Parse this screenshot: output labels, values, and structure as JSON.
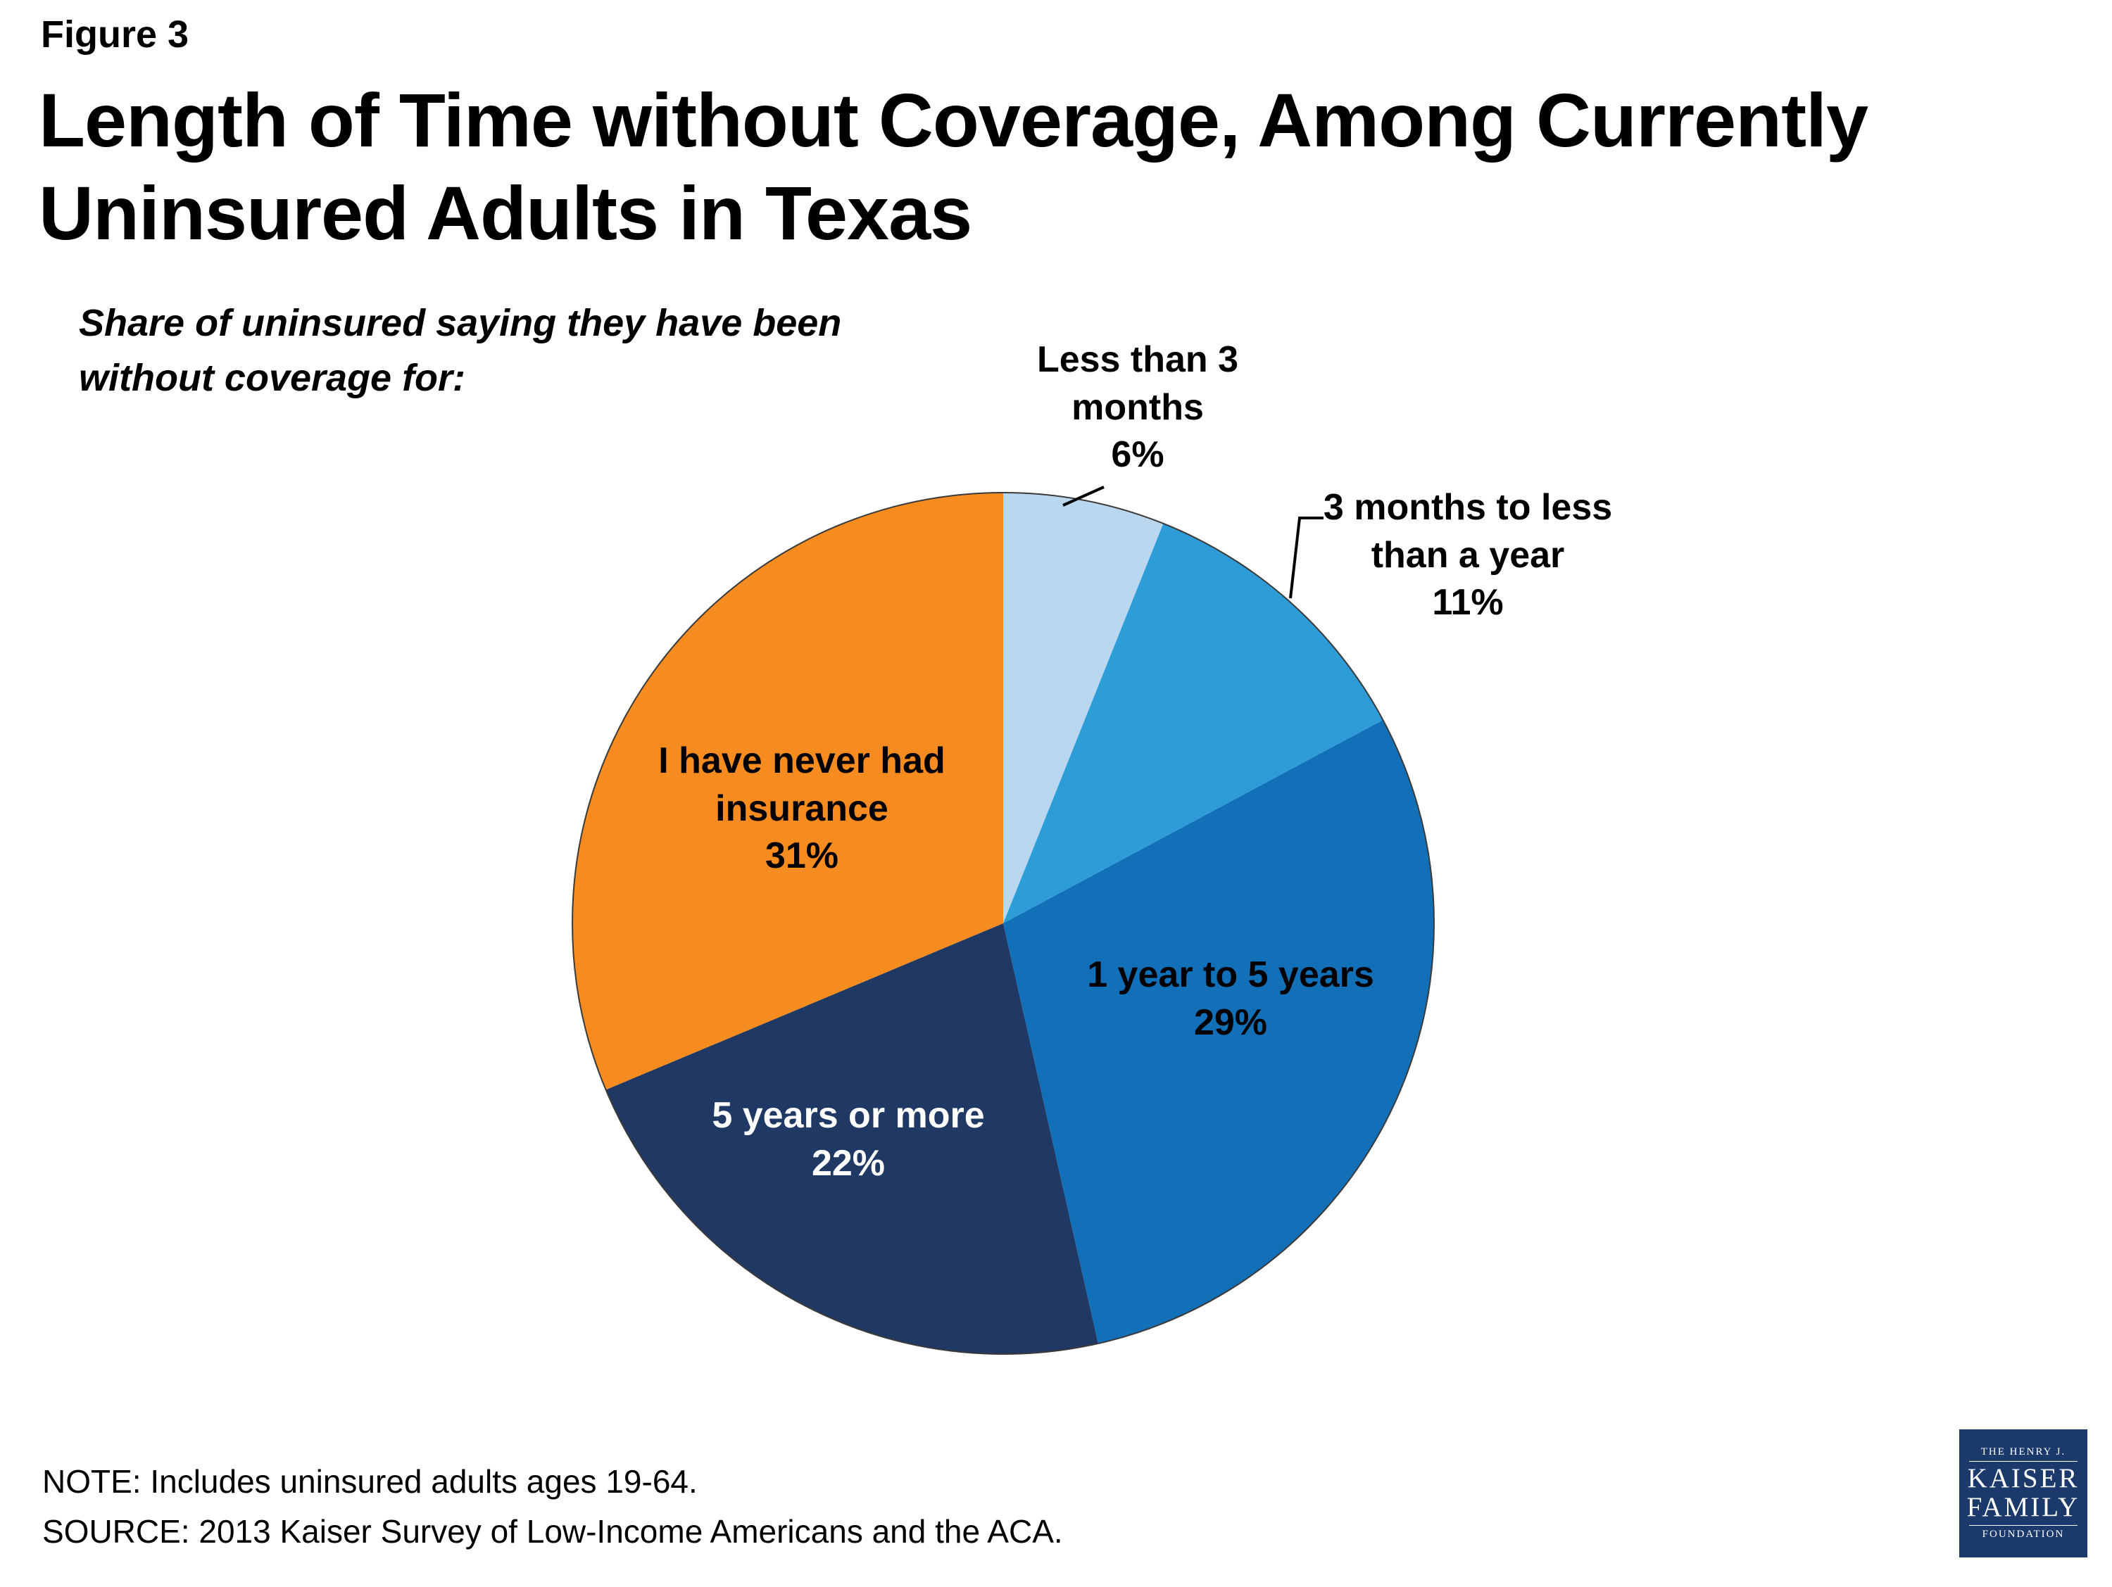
{
  "figure_label": "Figure 3",
  "title_line1": "Length of Time without Coverage, Among Currently",
  "title_line2": "Uninsured Adults in Texas",
  "subtitle_line1": "Share of uninsured saying they have been",
  "subtitle_line2": "without coverage for:",
  "note": "NOTE: Includes uninsured adults ages 19-64.",
  "source": "SOURCE: 2013 Kaiser Survey of Low-Income Americans and the ACA.",
  "logo": {
    "line1": "THE HENRY J.",
    "line2": "KAISER",
    "line3": "FAMILY",
    "line4": "FOUNDATION"
  },
  "chart_data": {
    "type": "pie",
    "title": "Length of Time without Coverage, Among Currently Uninsured Adults in Texas",
    "subtitle": "Share of uninsured saying they have been without coverage for:",
    "start_angle_deg": -90,
    "direction": "clockwise",
    "legend_position": "labels-on-and-around-pie",
    "slices": [
      {
        "label": "Less than 3 months",
        "value": 6,
        "percent_label": "6%",
        "color": "#b9d7ee",
        "label_lines": {
          "0": "Less than 3",
          "1": "months",
          "2": "6%"
        }
      },
      {
        "label": "3 months to less than a year",
        "value": 11,
        "percent_label": "11%",
        "color": "#2e9cd6",
        "label_lines": {
          "0": "3 months to less",
          "1": "than a year",
          "2": "11%"
        }
      },
      {
        "label": "1 year to 5 years",
        "value": 29,
        "percent_label": "29%",
        "color": "#1170b8",
        "label_lines": {
          "0": "1 year to 5 years",
          "1": "29%"
        }
      },
      {
        "label": "5 years or more",
        "value": 22,
        "percent_label": "22%",
        "color": "#1f3864",
        "label_lines": {
          "0": "5 years or more",
          "1": "22%"
        }
      },
      {
        "label": "I have never had insurance",
        "value": 31,
        "percent_label": "31%",
        "color": "#f68b1f",
        "label_lines": {
          "0": "I have never had",
          "1": "insurance",
          "2": "31%"
        }
      }
    ]
  }
}
